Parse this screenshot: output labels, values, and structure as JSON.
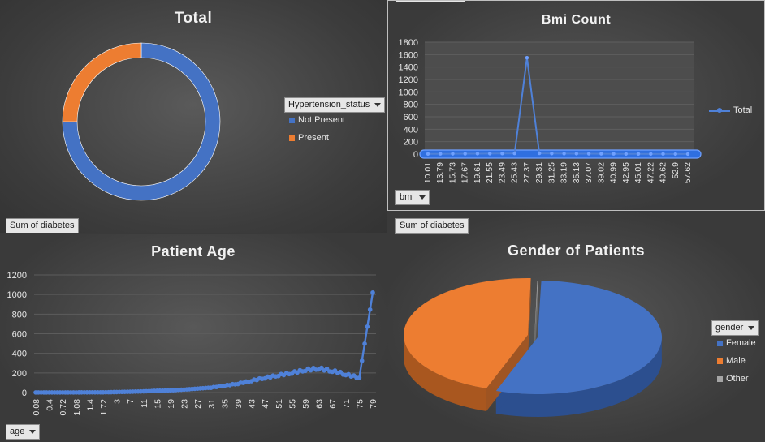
{
  "panels": {
    "hypertension": {
      "filter_label": "Sum of diabetes",
      "field_button": "Hypertension_status"
    },
    "bmi": {
      "filter_label": "Sum of diabetes",
      "field_button": "bmi"
    },
    "age": {
      "field_button": "age"
    },
    "gender": {
      "field_button": "gender"
    }
  },
  "colors": {
    "blue": "#4472c4",
    "orange": "#ed7d31",
    "gray": "#a5a5a5",
    "background": "#3a3a3a"
  },
  "chart_data": [
    {
      "type": "pie",
      "style": "doughnut",
      "title": "Total",
      "labels": [
        "Not Present",
        "Present"
      ],
      "values": [
        75,
        25
      ],
      "legend_title": "Hypertension_status",
      "legend_position": "right"
    },
    {
      "type": "line",
      "title": "Bmi Count",
      "categories": [
        "10.01",
        "13.79",
        "15.73",
        "17.67",
        "19.61",
        "21.55",
        "23.49",
        "25.43",
        "27.37",
        "29.31",
        "31.25",
        "33.19",
        "35.13",
        "37.07",
        "39.02",
        "40.99",
        "42.95",
        "45.01",
        "47.22",
        "49.62",
        "52.9",
        "57.62"
      ],
      "series": [
        {
          "name": "Total",
          "values": [
            3,
            4,
            5,
            6,
            7,
            8,
            9,
            10,
            1550,
            12,
            9,
            8,
            7,
            6,
            5,
            4,
            3,
            3,
            2,
            2,
            1,
            1
          ]
        }
      ],
      "ylim": [
        0,
        1800
      ],
      "yticks": [
        0,
        200,
        400,
        600,
        800,
        1000,
        1200,
        1400,
        1600,
        1800
      ],
      "legend_position": "right",
      "grid": true
    },
    {
      "type": "line",
      "title": "Patient Age",
      "categories": [
        "0.08",
        "0.4",
        "0.72",
        "1.08",
        "1.4",
        "1.72",
        "3",
        "7",
        "11",
        "15",
        "19",
        "23",
        "27",
        "31",
        "35",
        "39",
        "43",
        "47",
        "51",
        "55",
        "59",
        "63",
        "67",
        "71",
        "75",
        "79"
      ],
      "series": [
        {
          "name": "Sum of diabetes",
          "values": [
            1,
            1,
            1,
            1,
            2,
            2,
            5,
            8,
            12,
            18,
            22,
            30,
            40,
            50,
            70,
            90,
            120,
            150,
            175,
            200,
            230,
            245,
            220,
            185,
            150,
            1020
          ]
        }
      ],
      "ylim": [
        0,
        1200
      ],
      "yticks": [
        0,
        200,
        400,
        600,
        800,
        1000,
        1200
      ],
      "grid": true
    },
    {
      "type": "pie",
      "style": "3d",
      "title": "Gender of Patients",
      "labels": [
        "Female",
        "Male",
        "Other"
      ],
      "values": [
        55,
        45,
        0.1
      ],
      "legend_title": "gender",
      "legend_position": "right"
    }
  ]
}
